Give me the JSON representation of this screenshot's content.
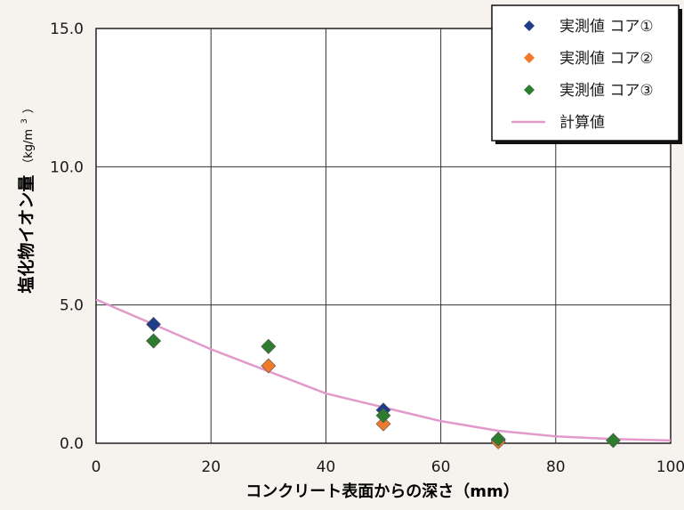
{
  "chart_data": {
    "type": "scatter",
    "xlabel": "コンクリート表面からの深さ（mm）",
    "ylabel": "塩化物イオン量（kg/m3）",
    "ylabel_main": "塩化物イオン量",
    "ylabel_unit": "（kg/m",
    "ylabel_unit_sup": "3",
    "ylabel_unit_close": "）",
    "xlim": [
      0,
      100
    ],
    "ylim": [
      0,
      15
    ],
    "xticks": [
      0,
      20,
      40,
      60,
      80,
      100
    ],
    "xtick_labels": [
      "0",
      "20",
      "40",
      "60",
      "80",
      "100"
    ],
    "yticks": [
      0,
      5,
      10,
      15
    ],
    "ytick_labels": [
      "0.0",
      "5.0",
      "10.0",
      "15.0"
    ],
    "grid": true,
    "legend_position": "top-right",
    "series": [
      {
        "name": "実測値 コア①",
        "color": "#1f3c88",
        "marker": "diamond",
        "points": [
          [
            10,
            4.3
          ],
          [
            30,
            3.5
          ],
          [
            50,
            1.2
          ],
          [
            70,
            0.1
          ]
        ]
      },
      {
        "name": "実測値 コア②",
        "color": "#f07a2a",
        "marker": "diamond",
        "points": [
          [
            10,
            3.7
          ],
          [
            30,
            2.8
          ],
          [
            50,
            0.7
          ],
          [
            70,
            0.05
          ]
        ]
      },
      {
        "name": "実測値 コア③",
        "color": "#2e7d2e",
        "marker": "diamond",
        "points": [
          [
            10,
            3.7
          ],
          [
            30,
            3.5
          ],
          [
            50,
            1.0
          ],
          [
            70,
            0.15
          ],
          [
            90,
            0.1
          ]
        ]
      },
      {
        "name": "計算値",
        "color": "#e29acb",
        "type": "line",
        "points": [
          [
            0,
            5.2
          ],
          [
            10,
            4.3
          ],
          [
            20,
            3.4
          ],
          [
            30,
            2.6
          ],
          [
            40,
            1.8
          ],
          [
            50,
            1.3
          ],
          [
            60,
            0.8
          ],
          [
            70,
            0.45
          ],
          [
            80,
            0.25
          ],
          [
            90,
            0.15
          ],
          [
            100,
            0.1
          ]
        ]
      }
    ]
  }
}
